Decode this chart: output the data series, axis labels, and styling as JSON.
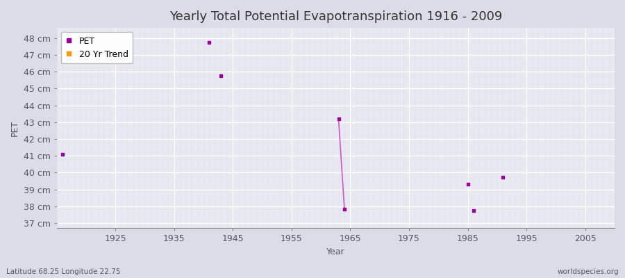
{
  "title": "Yearly Total Potential Evapotranspiration 1916 - 2009",
  "xlabel": "Year",
  "ylabel": "PET",
  "footnote_left": "Latitude 68.25 Longitude 22.75",
  "footnote_right": "worldspecies.org",
  "xlim": [
    1915,
    2010
  ],
  "ylim": [
    36.7,
    48.6
  ],
  "yticks": [
    37,
    38,
    39,
    40,
    41,
    42,
    43,
    44,
    45,
    46,
    47,
    48
  ],
  "ytick_labels": [
    "37 cm",
    "38 cm",
    "39 cm",
    "40 cm",
    "41 cm",
    "42 cm",
    "43 cm",
    "44 cm",
    "45 cm",
    "46 cm",
    "47 cm",
    "48 cm"
  ],
  "xticks": [
    1925,
    1935,
    1945,
    1955,
    1965,
    1975,
    1985,
    1995,
    2005
  ],
  "pet_scatter_x": [
    1916,
    1941,
    1943,
    1963,
    1964,
    1985,
    1986,
    1991
  ],
  "pet_scatter_y": [
    41.1,
    47.75,
    45.75,
    43.2,
    37.85,
    39.3,
    37.75,
    39.75
  ],
  "trend_line_x": [
    1963,
    1964
  ],
  "trend_line_y": [
    43.2,
    37.85
  ],
  "pet_color": "#990099",
  "trend_line_color": "#cc55cc",
  "trend_legend_color": "#ff9900",
  "fig_bg_color": "#dcdce8",
  "plot_bg_color": "#e8e8f0",
  "grid_major_color": "#ffffff",
  "grid_minor_color": "#d8d8e4",
  "title_fontsize": 13,
  "label_fontsize": 9,
  "tick_fontsize": 9,
  "tick_color": "#555566"
}
